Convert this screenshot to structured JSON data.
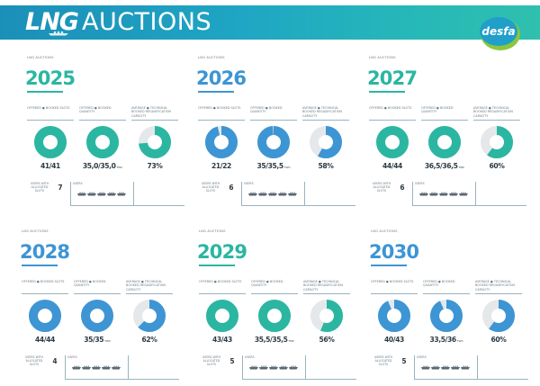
{
  "header": {
    "title_strong": "LNG",
    "title_light": "AUCTIONS",
    "logo_text": "desfa"
  },
  "colors": {
    "teal": "#2bb6a2",
    "blue": "#3d95d4",
    "track": "#e5e8ea",
    "banner_start": "#1b8fb8",
    "banner_end": "#2fc0ae"
  },
  "panels": [
    {
      "caption": "LNG AUCTIONS",
      "year": "2025",
      "color": "teal",
      "metrics": [
        {
          "label": "OFFERED ● BOOKED SLOTS",
          "value": "41/41",
          "unit": "",
          "fraction": 1.0
        },
        {
          "label": "OFFERED ● BOOKED QUANTITY",
          "value": "35,0/35,0",
          "unit": "TWh",
          "fraction": 1.0
        },
        {
          "label": "AVERAGE ● TECHNICAL BOOKED REGASIFICATION CAPACITY",
          "value": "73%",
          "unit": "",
          "fraction": 0.73
        }
      ],
      "users": {
        "label": "USERS WITH ALLOCATED SLOTS",
        "count": "7",
        "box_label": "USERS"
      }
    },
    {
      "caption": "LNG AUCTIONS",
      "year": "2026",
      "color": "blue",
      "metrics": [
        {
          "label": "OFFERED ● BOOKED SLOTS",
          "value": "21/22",
          "unit": "",
          "fraction": 0.955
        },
        {
          "label": "OFFERED ● BOOKED QUANTITY",
          "value": "35/35,5",
          "unit": "TWh",
          "fraction": 0.986
        },
        {
          "label": "AVERAGE ● TECHNICAL BOOKED REGASIFICATION CAPACITY",
          "value": "58%",
          "unit": "",
          "fraction": 0.58
        }
      ],
      "users": {
        "label": "USERS WITH ALLOCATED SLOTS",
        "count": "6",
        "box_label": "USERS"
      }
    },
    {
      "caption": "LNG AUCTIONS",
      "year": "2027",
      "color": "teal",
      "metrics": [
        {
          "label": "OFFERED ● BOOKED SLOTS",
          "value": "44/44",
          "unit": "",
          "fraction": 1.0
        },
        {
          "label": "OFFERED ● BOOKED QUANTITY",
          "value": "36,5/36,5",
          "unit": "TWh",
          "fraction": 1.0
        },
        {
          "label": "AVERAGE ● TECHNICAL BOOKED REGASIFICATION CAPACITY",
          "value": "60%",
          "unit": "",
          "fraction": 0.6
        }
      ],
      "users": {
        "label": "USERS WITH ALLOCATED SLOTS",
        "count": "6",
        "box_label": "USERS"
      }
    },
    {
      "caption": "LNG AUCTIONS",
      "year": "2028",
      "color": "blue",
      "metrics": [
        {
          "label": "OFFERED ● BOOKED SLOTS",
          "value": "44/44",
          "unit": "",
          "fraction": 1.0
        },
        {
          "label": "OFFERED ● BOOKED QUANTITY",
          "value": "35/35",
          "unit": "TWh",
          "fraction": 1.0
        },
        {
          "label": "AVERAGE ● TECHNICAL BOOKED REGASIFICATION CAPACITY",
          "value": "62%",
          "unit": "",
          "fraction": 0.62
        }
      ],
      "users": {
        "label": "USERS WITH ALLOCATED SLOTS",
        "count": "4",
        "box_label": "USERS"
      }
    },
    {
      "caption": "LNG AUCTIONS",
      "year": "2029",
      "color": "teal",
      "metrics": [
        {
          "label": "OFFERED ● BOOKED SLOTS",
          "value": "43/43",
          "unit": "",
          "fraction": 1.0
        },
        {
          "label": "OFFERED ● BOOKED QUANTITY",
          "value": "35,5/35,5",
          "unit": "TWh",
          "fraction": 1.0
        },
        {
          "label": "AVERAGE ● TECHNICAL BOOKED REGASIFICATION CAPACITY",
          "value": "56%",
          "unit": "",
          "fraction": 0.56
        }
      ],
      "users": {
        "label": "USERS WITH ALLOCATED SLOTS",
        "count": "5",
        "box_label": "USERS"
      }
    },
    {
      "caption": "LNG AUCTIONS",
      "year": "2030",
      "color": "blue",
      "metrics": [
        {
          "label": "OFFERED ● BOOKED SLOTS",
          "value": "40/43",
          "unit": "",
          "fraction": 0.93
        },
        {
          "label": "OFFERED ● BOOKED QUANTITY",
          "value": "33,5/36",
          "unit": "TWh",
          "fraction": 0.93
        },
        {
          "label": "AVERAGE ● TECHNICAL BOOKED REGASIFICATION CAPACITY",
          "value": "60%",
          "unit": "",
          "fraction": 0.6
        }
      ],
      "users": {
        "label": "USERS WITH ALLOCATED SLOTS",
        "count": "5",
        "box_label": "USERS"
      }
    }
  ]
}
